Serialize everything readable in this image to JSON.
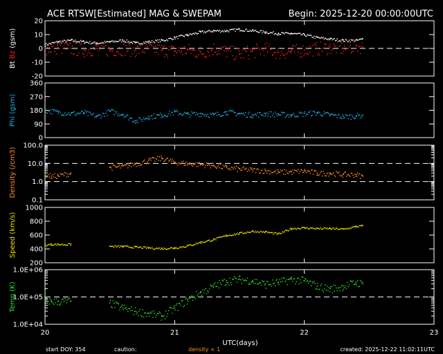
{
  "chart_data": {
    "type": "line",
    "title": "ACE RTSW[Estimated] MAG & SWEPAM",
    "begin_label": "Begin: 2025-12-20 00:00:00UTC",
    "xlabel": "UTC(days)",
    "xlim": [
      20,
      23
    ],
    "x_ticks": [
      "20",
      "21",
      "22",
      "23"
    ],
    "footer": {
      "start_doy": "start DOY: 354",
      "caution": "caution:",
      "caution_note": "density < 1",
      "created": "created: 2025-12-22 11:02:11UTC"
    },
    "panels": [
      {
        "id": "mag",
        "ylabel_parts": [
          {
            "text": "Bt",
            "color": "#ffffff"
          },
          {
            "text": " Bz",
            "color": "#ff2020"
          },
          {
            "text": " (gsm)",
            "color": "#ffffff"
          }
        ],
        "scale": "linear",
        "ylim": [
          -20,
          20
        ],
        "y_ticks": [
          "20",
          "10",
          "0",
          "-10",
          "-20"
        ],
        "y_tick_values": [
          20,
          10,
          0,
          -10,
          -20
        ],
        "ref_lines": [
          0
        ],
        "series": [
          {
            "name": "Bt",
            "color": "#ffffff",
            "x": [
              20.0,
              20.1,
              20.2,
              20.3,
              20.4,
              20.5,
              20.6,
              20.7,
              20.8,
              20.9,
              21.0,
              21.1,
              21.2,
              21.3,
              21.4,
              21.5,
              21.6,
              21.7,
              21.8,
              21.9,
              22.0,
              22.1,
              22.2,
              22.3,
              22.4,
              22.45
            ],
            "values": [
              3,
              5,
              6,
              5,
              4,
              5,
              6,
              4,
              5,
              6,
              8,
              10,
              12,
              13,
              13,
              14,
              13,
              12,
              11,
              11,
              10,
              8,
              7,
              6,
              6,
              7
            ],
            "jitter": 1
          },
          {
            "name": "Bz",
            "color": "#ff2020",
            "x": [
              20.0,
              20.1,
              20.2,
              20.3,
              20.4,
              20.5,
              20.6,
              20.7,
              20.8,
              20.9,
              21.0,
              21.1,
              21.2,
              21.3,
              21.4,
              21.5,
              21.6,
              21.7,
              21.8,
              21.9,
              22.0,
              22.1,
              22.2,
              22.3,
              22.4,
              22.45
            ],
            "values": [
              0,
              1,
              0,
              -1,
              0,
              -1,
              0,
              -1,
              0,
              -1,
              -2,
              -1,
              -3,
              0,
              -2,
              -4,
              -2,
              0,
              -3,
              -2,
              -1,
              0,
              1,
              0,
              2,
              1
            ],
            "jitter": 5
          }
        ]
      },
      {
        "id": "phi",
        "ylabel_parts": [
          {
            "text": "Phi (gsm)",
            "color": "#22b0e8"
          }
        ],
        "scale": "linear",
        "ylim": [
          0,
          360
        ],
        "y_ticks": [
          "360",
          "270",
          "180",
          "90",
          "0"
        ],
        "y_tick_values": [
          360,
          270,
          180,
          90,
          0
        ],
        "ref_lines": [],
        "series": [
          {
            "name": "Phi",
            "color": "#22b0e8",
            "x": [
              20.0,
              20.1,
              20.2,
              20.3,
              20.4,
              20.5,
              20.6,
              20.7,
              20.8,
              20.9,
              21.0,
              21.1,
              21.2,
              21.3,
              21.4,
              21.5,
              21.6,
              21.7,
              21.8,
              21.9,
              22.0,
              22.1,
              22.2,
              22.3,
              22.4,
              22.45
            ],
            "values": [
              180,
              170,
              160,
              165,
              140,
              175,
              155,
              110,
              140,
              150,
              170,
              155,
              160,
              150,
              170,
              160,
              150,
              160,
              155,
              150,
              160,
              165,
              150,
              140,
              145,
              150
            ],
            "jitter": 18
          }
        ]
      },
      {
        "id": "density",
        "ylabel_parts": [
          {
            "text": "Density (/cm3)",
            "color": "#ff9020"
          }
        ],
        "scale": "log",
        "ylim": [
          0.1,
          100
        ],
        "y_ticks": [
          "100.0",
          "10.0",
          "1.0",
          "0.1"
        ],
        "y_tick_values": [
          100,
          10,
          1,
          0.1
        ],
        "ref_lines": [
          10,
          1
        ],
        "series": [
          {
            "name": "Density",
            "color": "#ff9020",
            "x": [
              20.0,
              20.05,
              20.1,
              20.2,
              20.5,
              20.6,
              20.7,
              20.8,
              20.9,
              21.0,
              21.1,
              21.2,
              21.3,
              21.4,
              21.5,
              21.6,
              21.7,
              21.8,
              21.9,
              22.0,
              22.1,
              22.2,
              22.3,
              22.4,
              22.45
            ],
            "values": [
              2.5,
              2,
              2.2,
              3,
              6,
              7,
              10,
              15,
              20,
              12,
              10,
              9,
              8,
              6,
              5,
              4.5,
              4,
              3.5,
              3.5,
              4,
              3,
              3,
              2.5,
              2.5,
              2
            ],
            "gap_after": 3,
            "jitter": 0.15
          }
        ]
      },
      {
        "id": "speed",
        "ylabel_parts": [
          {
            "text": "Speed (km/s)",
            "color": "#f0e000"
          }
        ],
        "scale": "linear",
        "ylim": [
          200,
          1000
        ],
        "y_ticks": [
          "1000",
          "800",
          "600",
          "400",
          "200"
        ],
        "y_tick_values": [
          1000,
          800,
          600,
          400,
          200
        ],
        "ref_lines": [],
        "series": [
          {
            "name": "Speed",
            "color": "#f0e000",
            "x": [
              20.0,
              20.05,
              20.1,
              20.2,
              20.5,
              20.6,
              20.7,
              20.8,
              20.9,
              21.0,
              21.1,
              21.2,
              21.3,
              21.4,
              21.5,
              21.6,
              21.7,
              21.8,
              21.9,
              22.0,
              22.1,
              22.2,
              22.3,
              22.4,
              22.45
            ],
            "values": [
              460,
              470,
              470,
              470,
              440,
              440,
              430,
              420,
              410,
              420,
              450,
              500,
              540,
              600,
              630,
              660,
              650,
              620,
              700,
              710,
              700,
              700,
              690,
              730,
              740
            ],
            "gap_after": 3,
            "jitter": 15
          }
        ]
      },
      {
        "id": "temp",
        "ylabel_parts": [
          {
            "text": "Temp (K)",
            "color": "#30e030"
          }
        ],
        "scale": "log",
        "ylim": [
          10000,
          1000000
        ],
        "y_ticks": [
          "1.0E+06",
          "1.0E+05",
          "1.0E+04"
        ],
        "y_tick_values": [
          1000000,
          100000,
          10000
        ],
        "ref_lines": [
          100000
        ],
        "series": [
          {
            "name": "Temp",
            "color": "#30e030",
            "x": [
              20.0,
              20.05,
              20.1,
              20.2,
              20.5,
              20.6,
              20.7,
              20.8,
              20.9,
              21.0,
              21.1,
              21.2,
              21.3,
              21.4,
              21.5,
              21.6,
              21.7,
              21.8,
              21.9,
              22.0,
              22.1,
              22.2,
              22.3,
              22.4,
              22.45
            ],
            "values": [
              80000,
              70000,
              70000,
              70000,
              60000,
              40000,
              30000,
              25000,
              20000,
              40000,
              80000,
              150000,
              250000,
              400000,
              450000,
              400000,
              300000,
              350000,
              450000,
              400000,
              250000,
              200000,
              250000,
              350000,
              300000
            ],
            "gap_after": 3,
            "jitter": 0.15
          }
        ]
      }
    ]
  }
}
